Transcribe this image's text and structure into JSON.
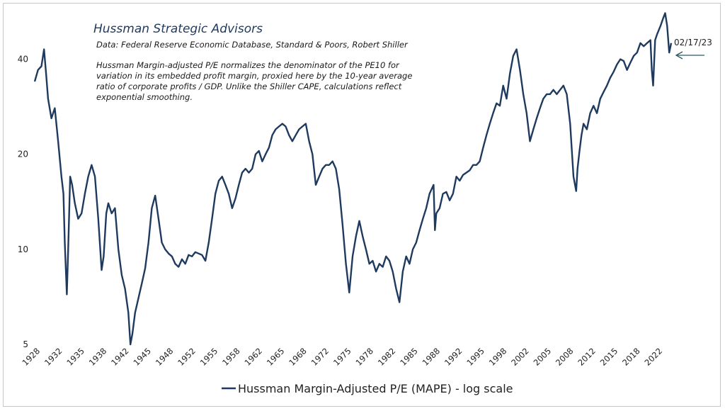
{
  "chart_data": {
    "type": "line",
    "title": "Hussman Strategic Advisors",
    "source": "Data: Federal Reserve Economic Database, Standard & Poors, Robert Shiller",
    "note_lines": [
      "Hussman Margin-adjusted P/E normalizes the denominator of the PE10 for",
      "variation in its embedded  profit margin, proxied here by the 10-year average",
      "ratio of corporate profits / GDP. Unlike the Shiller CAPE, calculations reflect",
      "exponential  smoothing."
    ],
    "y_scale": "log",
    "ylim": [
      5,
      55
    ],
    "y_ticks": [
      "5",
      "10",
      "20",
      "40"
    ],
    "x_tick_labels": [
      "1928",
      "1932",
      "1935",
      "1938",
      "1942",
      "1945",
      "1948",
      "1952",
      "1955",
      "1958",
      "1962",
      "1965",
      "1968",
      "1972",
      "1975",
      "1978",
      "1982",
      "1985",
      "1988",
      "1992",
      "1995",
      "1998",
      "2002",
      "2005",
      "2008",
      "2012",
      "2015",
      "2018",
      "2022"
    ],
    "grid": false,
    "legend_position": "bottom",
    "annotation": {
      "label": "02/17/23"
    },
    "color": "#1f3a5f",
    "series": [
      {
        "name": "Hussman Margin-Adjusted P/E (MAPE) - log scale",
        "x": [
          1928.0,
          1928.5,
          1929.0,
          1929.4,
          1929.7,
          1930.0,
          1930.5,
          1931.0,
          1931.5,
          1932.0,
          1932.3,
          1932.5,
          1932.8,
          1933.0,
          1933.3,
          1933.6,
          1934.0,
          1934.5,
          1935.0,
          1935.5,
          1936.0,
          1936.5,
          1937.0,
          1937.5,
          1938.0,
          1938.3,
          1938.7,
          1939.0,
          1939.5,
          1940.0,
          1940.5,
          1941.0,
          1941.5,
          1942.0,
          1942.3,
          1942.6,
          1943.0,
          1943.5,
          1944.0,
          1944.5,
          1945.0,
          1945.5,
          1946.0,
          1946.5,
          1947.0,
          1947.5,
          1948.0,
          1948.5,
          1949.0,
          1949.5,
          1950.0,
          1950.5,
          1951.0,
          1951.5,
          1952.0,
          1952.5,
          1953.0,
          1953.5,
          1954.0,
          1954.5,
          1955.0,
          1955.5,
          1956.0,
          1956.5,
          1957.0,
          1957.5,
          1958.0,
          1958.5,
          1959.0,
          1959.5,
          1960.0,
          1960.5,
          1961.0,
          1961.5,
          1962.0,
          1962.5,
          1963.0,
          1963.5,
          1964.0,
          1964.5,
          1965.0,
          1965.5,
          1966.0,
          1966.5,
          1967.0,
          1967.5,
          1968.0,
          1968.5,
          1969.0,
          1969.5,
          1970.0,
          1970.5,
          1971.0,
          1971.5,
          1972.0,
          1972.5,
          1973.0,
          1973.5,
          1974.0,
          1974.5,
          1975.0,
          1975.5,
          1976.0,
          1976.5,
          1977.0,
          1977.5,
          1978.0,
          1978.5,
          1979.0,
          1979.5,
          1980.0,
          1980.5,
          1981.0,
          1981.5,
          1982.0,
          1982.5,
          1983.0,
          1983.5,
          1984.0,
          1984.5,
          1985.0,
          1985.5,
          1986.0,
          1986.5,
          1987.0,
          1987.6,
          1987.8,
          1988.0,
          1988.5,
          1989.0,
          1989.5,
          1990.0,
          1990.5,
          1991.0,
          1991.5,
          1992.0,
          1992.5,
          1993.0,
          1993.5,
          1994.0,
          1994.5,
          1995.0,
          1995.5,
          1996.0,
          1996.5,
          1997.0,
          1997.5,
          1998.0,
          1998.5,
          1999.0,
          1999.5,
          2000.0,
          2000.5,
          2001.0,
          2001.5,
          2002.0,
          2002.5,
          2003.0,
          2003.5,
          2004.0,
          2004.5,
          2005.0,
          2005.5,
          2006.0,
          2006.5,
          2007.0,
          2007.5,
          2008.0,
          2008.5,
          2008.9,
          2009.1,
          2009.4,
          2009.7,
          2010.0,
          2010.5,
          2011.0,
          2011.5,
          2012.0,
          2012.5,
          2013.0,
          2013.5,
          2014.0,
          2014.5,
          2015.0,
          2015.5,
          2016.0,
          2016.5,
          2017.0,
          2017.5,
          2018.0,
          2018.5,
          2019.0,
          2019.5,
          2020.0,
          2020.2,
          2020.4,
          2020.7,
          2021.0,
          2021.5,
          2021.9,
          2022.2,
          2022.5,
          2022.8,
          2023.1
        ],
        "values": [
          34,
          37,
          38,
          43,
          36,
          30,
          26,
          28,
          22,
          17,
          15,
          10.5,
          7.2,
          10,
          17,
          16,
          14,
          12.5,
          13,
          15,
          17,
          18.5,
          17,
          12.5,
          8.6,
          9.5,
          13,
          14,
          13,
          13.5,
          10,
          8.3,
          7.5,
          6.3,
          5.0,
          5.4,
          6.3,
          7,
          7.8,
          8.7,
          10.5,
          13.5,
          14.8,
          12.5,
          10.5,
          10,
          9.7,
          9.5,
          9,
          8.8,
          9.3,
          9,
          9.6,
          9.5,
          9.8,
          9.7,
          9.6,
          9.2,
          10.5,
          12.5,
          15,
          16.5,
          17,
          16,
          15,
          13.5,
          14.5,
          16,
          17.5,
          18,
          17.5,
          18,
          20,
          20.5,
          19,
          20,
          21,
          23,
          24,
          24.5,
          25,
          24.5,
          23,
          22,
          23,
          24,
          24.5,
          25,
          22,
          20,
          16,
          17,
          18,
          18.5,
          18.5,
          19,
          18,
          15.5,
          12,
          9,
          7.3,
          9.5,
          11,
          12.3,
          11,
          10,
          9,
          9.2,
          8.5,
          9,
          8.8,
          9.5,
          9.2,
          8.5,
          7.5,
          6.8,
          8.5,
          9.5,
          9,
          10,
          10.5,
          11.5,
          12.5,
          13.5,
          15,
          16,
          11.5,
          13,
          13.5,
          15,
          15.2,
          14.3,
          15,
          17,
          16.5,
          17.2,
          17.5,
          17.8,
          18.5,
          18.5,
          19,
          21,
          23,
          25,
          27,
          29,
          28.5,
          33,
          30,
          36,
          41,
          43,
          37,
          31,
          27,
          22,
          24,
          26,
          28,
          30,
          31,
          31,
          32,
          31,
          32,
          33,
          31,
          25,
          17,
          15.3,
          18,
          20.5,
          23,
          25,
          24,
          27,
          28.5,
          27,
          30,
          31.5,
          33,
          35,
          36.5,
          38.5,
          40,
          39.5,
          37,
          39,
          41,
          42,
          45,
          44,
          45,
          46,
          37,
          33,
          46,
          48,
          51,
          54,
          56,
          51,
          42,
          45
        ]
      }
    ]
  }
}
